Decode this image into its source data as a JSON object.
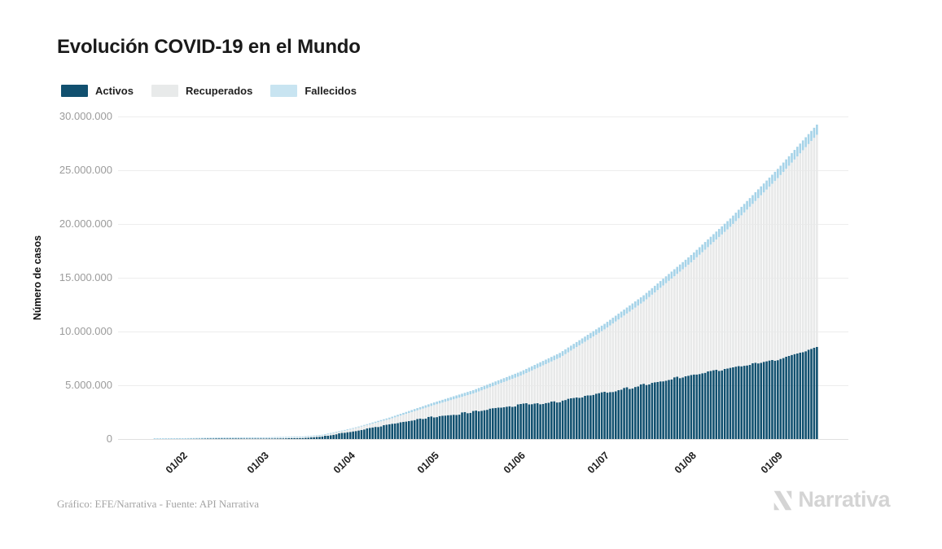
{
  "title": "Evolución COVID-19 en el Mundo",
  "footer": {
    "credit": "Gráfico: EFE/Narrativa - Fuente: API Narrativa",
    "brand": "Narrativa"
  },
  "colors": {
    "title_text": "#1a1a1a",
    "axis_tick_text": "#9b9b9b",
    "gridline": "#ededed",
    "baseline": "#e0e0e0",
    "footer_text": "#a3a3a3",
    "logo": "#d4d4d4"
  },
  "chart_data": {
    "type": "bar",
    "stacked": true,
    "title": "Evolución COVID-19 en el Mundo",
    "xlabel": "",
    "ylabel": "Número de casos",
    "ylim": [
      0,
      30000000
    ],
    "grid": "horizontal",
    "legend_position": "top-left",
    "yticks": {
      "values": [
        0,
        5000000,
        10000000,
        15000000,
        20000000,
        25000000,
        30000000
      ],
      "labels": [
        "0",
        "5.000.000",
        "10.000.000",
        "15.000.000",
        "20.000.000",
        "25.000.000",
        "30.000.000"
      ]
    },
    "xticks": {
      "labels": [
        "01/02",
        "01/03",
        "01/04",
        "01/05",
        "01/06",
        "01/07",
        "01/08",
        "01/09"
      ],
      "day_index": [
        10,
        39,
        70,
        100,
        131,
        161,
        192,
        223
      ]
    },
    "x_range_dates": [
      "22/01/2020",
      "15/09/2020"
    ],
    "series": [
      {
        "name": "Activos",
        "color": "#11506f",
        "legend_color": "#11506f"
      },
      {
        "name": "Recuperados",
        "color": "#e8e9e9",
        "legend_color": "#e8eaea"
      },
      {
        "name": "Fallecidos",
        "color": "#a6d3e8",
        "legend_color": "#c8e4f1"
      }
    ],
    "points": [
      {
        "day": 0,
        "date": "22/01",
        "activos": 510,
        "recuperados": 30,
        "fallecidos": 17
      },
      {
        "day": 10,
        "date": "01/02",
        "activos": 11400,
        "recuperados": 290,
        "fallecidos": 260
      },
      {
        "day": 24,
        "date": "15/02",
        "activos": 58000,
        "recuperados": 8100,
        "fallecidos": 1700
      },
      {
        "day": 39,
        "date": "01/03",
        "activos": 42500,
        "recuperados": 42900,
        "fallecidos": 2980
      },
      {
        "day": 53,
        "date": "15/03",
        "activos": 92000,
        "recuperados": 76000,
        "fallecidos": 6500
      },
      {
        "day": 60,
        "date": "22/03",
        "activos": 230000,
        "recuperados": 98000,
        "fallecidos": 14700
      },
      {
        "day": 70,
        "date": "01/04",
        "activos": 693000,
        "recuperados": 193000,
        "fallecidos": 47200
      },
      {
        "day": 84,
        "date": "15/04",
        "activos": 1353000,
        "recuperados": 503000,
        "fallecidos": 134000
      },
      {
        "day": 100,
        "date": "01/05",
        "activos": 2077000,
        "recuperados": 1083000,
        "fallecidos": 244000
      },
      {
        "day": 114,
        "date": "15/05",
        "activos": 2520000,
        "recuperados": 1712000,
        "fallecidos": 310000
      },
      {
        "day": 131,
        "date": "01/06",
        "activos": 3170000,
        "recuperados": 2727000,
        "fallecidos": 376000
      },
      {
        "day": 145,
        "date": "15/06",
        "activos": 3520000,
        "recuperados": 4051000,
        "fallecidos": 438000
      },
      {
        "day": 161,
        "date": "01/07",
        "activos": 4290000,
        "recuperados": 5905000,
        "fallecidos": 517000
      },
      {
        "day": 175,
        "date": "15/07",
        "activos": 5030000,
        "recuperados": 7750000,
        "fallecidos": 590000
      },
      {
        "day": 192,
        "date": "01/08",
        "activos": 6000000,
        "recuperados": 10430000,
        "fallecidos": 686000
      },
      {
        "day": 206,
        "date": "15/08",
        "activos": 6590000,
        "recuperados": 13150000,
        "fallecidos": 770000
      },
      {
        "day": 223,
        "date": "01/09",
        "activos": 7400000,
        "recuperados": 16870000,
        "fallecidos": 858000
      },
      {
        "day": 237,
        "date": "15/09",
        "activos": 8520000,
        "recuperados": 19780000,
        "fallecidos": 944000
      }
    ]
  }
}
